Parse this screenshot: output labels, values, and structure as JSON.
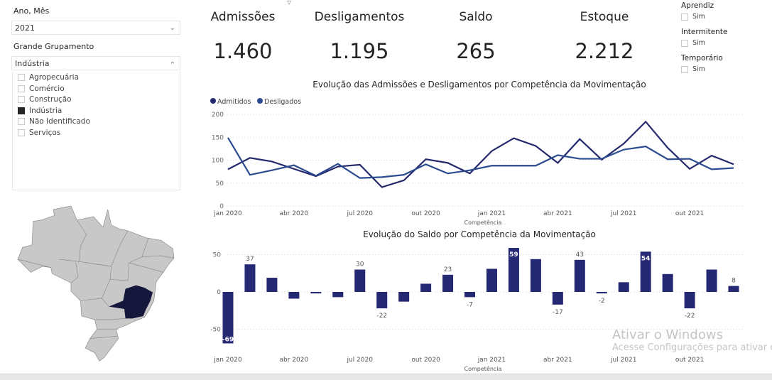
{
  "filters": {
    "ano_mes": {
      "label": "Ano, Mês",
      "value": "2021"
    },
    "grupamento": {
      "label": "Grande Grupamento",
      "value": "Indústria",
      "options": [
        {
          "label": "Agropecuária",
          "checked": false
        },
        {
          "label": "Comércio",
          "checked": false
        },
        {
          "label": "Construção",
          "checked": false
        },
        {
          "label": "Indústria",
          "checked": true
        },
        {
          "label": "Não Identificado",
          "checked": false
        },
        {
          "label": "Serviços",
          "checked": false
        }
      ]
    },
    "right": [
      {
        "label": "Aprendiz",
        "option": "Sim"
      },
      {
        "label": "Intermitente",
        "option": "Sim"
      },
      {
        "label": "Temporário",
        "option": "Sim"
      }
    ]
  },
  "kpis": [
    {
      "label": "Admissões",
      "value": "1.460"
    },
    {
      "label": "Desligamentos",
      "value": "1.195"
    },
    {
      "label": "Saldo",
      "value": "265"
    },
    {
      "label": "Estoque",
      "value": "2.212"
    }
  ],
  "colors": {
    "admitidos": "#252a6e",
    "desligados": "#2b4b8f",
    "bars": "#252872",
    "map_highlight": "#14173b",
    "map_default": "#c8c8c8"
  },
  "map": {
    "highlighted_state": "Minas Gerais"
  },
  "chart_data": [
    {
      "type": "line",
      "title": "Evolução das Admissões e Desligamentos por Competência da Movimentação",
      "xlabel": "Competência",
      "ylabel": "",
      "ylim": [
        0,
        200
      ],
      "yticks": [
        "0",
        "50",
        "100",
        "150",
        "200"
      ],
      "grid": true,
      "legend": "top-left",
      "x": [
        "jan 2020",
        "fev 2020",
        "mar 2020",
        "abr 2020",
        "mai 2020",
        "jun 2020",
        "jul 2020",
        "ago 2020",
        "set 2020",
        "out 2020",
        "nov 2020",
        "dez 2020",
        "jan 2021",
        "fev 2021",
        "mar 2021",
        "abr 2021",
        "mai 2021",
        "jun 2021",
        "jul 2021",
        "ago 2021",
        "set 2021",
        "out 2021",
        "nov 2021",
        "dez 2021"
      ],
      "xticks": [
        "jan 2020",
        "abr 2020",
        "jul 2020",
        "out 2020",
        "jan 2021",
        "abr 2021",
        "jul 2021",
        "out 2021"
      ],
      "series": [
        {
          "name": "Admitidos",
          "values": [
            80,
            105,
            97,
            81,
            65,
            86,
            90,
            41,
            56,
            102,
            94,
            71,
            120,
            148,
            131,
            94,
            146,
            101,
            136,
            184,
            127,
            81,
            110,
            91
          ]
        },
        {
          "name": "Desligados",
          "values": [
            149,
            68,
            78,
            89,
            66,
            92,
            61,
            63,
            68,
            91,
            71,
            78,
            88,
            88,
            88,
            111,
            103,
            103,
            123,
            130,
            102,
            103,
            80,
            83
          ]
        }
      ]
    },
    {
      "type": "bar",
      "title": "Evolução do Saldo por Competência da Movimentação",
      "xlabel": "Competência",
      "ylabel": "",
      "ylim": [
        -75,
        62
      ],
      "yticks": [
        "-50",
        "0",
        "50"
      ],
      "grid": true,
      "xticks": [
        "jan 2020",
        "abr 2020",
        "jul 2020",
        "out 2020",
        "jan 2021",
        "abr 2021",
        "jul 2021",
        "out 2021"
      ],
      "values": [
        -69,
        37,
        19,
        -9,
        -2,
        -7,
        30,
        -22,
        -13,
        11,
        23,
        -7,
        31,
        59,
        44,
        -17,
        43,
        -2,
        13,
        54,
        24,
        -22,
        30,
        8
      ],
      "labels": [
        "-69",
        "37",
        "",
        "",
        "",
        "",
        "30",
        "-22",
        "",
        "",
        "23",
        "-7",
        "",
        "59",
        "",
        "-17",
        "43",
        "-2",
        "",
        "54",
        "",
        "-22",
        "",
        "8"
      ]
    }
  ],
  "watermark": {
    "line1": "Ativar o Windows",
    "line2": "Acesse Configurações para ativar o"
  }
}
